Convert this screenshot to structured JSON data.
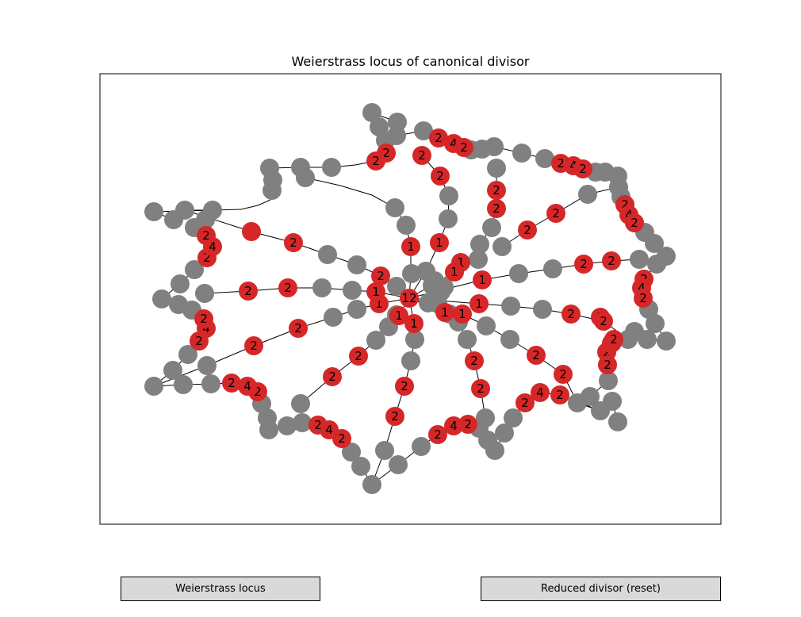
{
  "title": "Weierstrass locus of canonical divisor",
  "buttons": {
    "weierstrass": "Weierstrass locus",
    "reset": "Reduced divisor (reset)"
  },
  "colors": {
    "chip": "#d62728",
    "empty": "#808080",
    "edge": "#000000"
  },
  "chip_labels": [
    "2",
    "4",
    "2",
    "2",
    "4",
    "2",
    "2",
    "4",
    "2",
    "2",
    "4",
    "2",
    "2",
    "4",
    "2",
    "2",
    "4",
    "2",
    "2",
    "4",
    "2",
    "2",
    "4",
    "2",
    "2",
    "4",
    "2",
    "2",
    "4",
    "2",
    "2",
    "4",
    "2",
    "2",
    "4",
    "2",
    "1",
    "1",
    "1",
    "1",
    "1",
    "1",
    "1",
    "1",
    "1",
    "1",
    "1",
    "1",
    "12",
    "2",
    "2",
    "2",
    "2",
    "2",
    "2",
    "2",
    "2",
    "2",
    "2",
    "2",
    "2",
    "2",
    "2",
    "2",
    "2",
    "2",
    "2",
    "2",
    "2",
    "2",
    "2",
    "2",
    "2",
    "2",
    "2"
  ]
}
